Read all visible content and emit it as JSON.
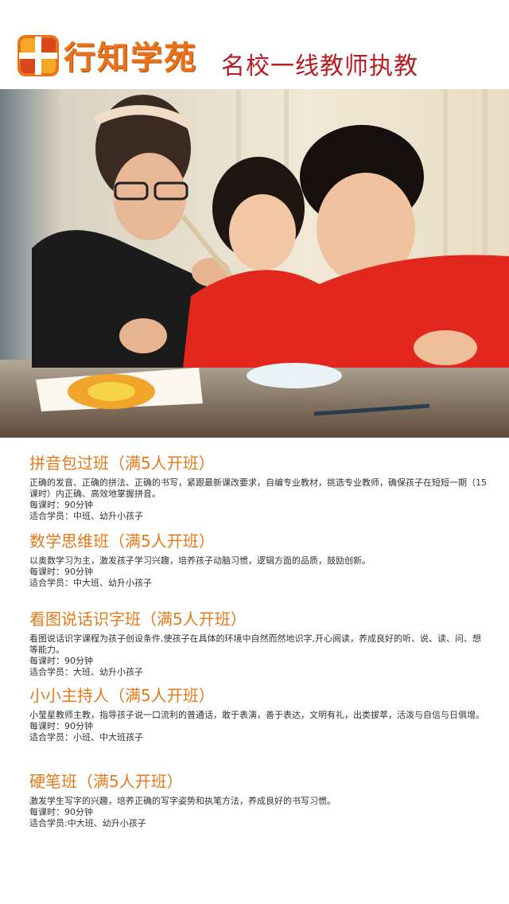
{
  "header": {
    "brand": "行知学苑",
    "slogan": "名校一线教师执教"
  },
  "courses": [
    {
      "title": "拼音包过班（满5人开班）",
      "desc": "正确的发音、正确的拼法、正确的书写，紧跟最新课改要求，自编专业教材，挑选专业教师，确保孩子在短短一期（15课时）内正确、高效地掌握拼音。",
      "duration": "每课时：90分钟",
      "students": "适合学员：中班、幼升小孩子"
    },
    {
      "title": "数学思维班（满5人开班）",
      "desc": "以奥数学习为主，激发孩子学习兴趣，培养孩子动脑习惯，逻辑方面的品质，鼓励创新。",
      "duration": "每课时：90分钟",
      "students": "适合学员：中大班、幼升小孩子"
    },
    {
      "title": "看图说话识字班（满5人开班）",
      "desc": "看图说话识字课程为孩子创设条件,使孩子在具体的环境中自然而然地识字,开心阅读，养成良好的听、说、读、问、想等能力。",
      "duration": "每课时：90分钟",
      "students": "适合学员：大班、幼升小孩子"
    },
    {
      "title": "小小主持人（满5人开班）",
      "desc": "小莹星教师主教，指导孩子说一口流利的普通话，敢于表演，善于表达，文明有礼，出类拔萃，活泼与自信与日俱增。",
      "duration": "每课时：90分钟",
      "students": "适合学员：小班、中大班孩子"
    },
    {
      "title": "硬笔班（满5人开班）",
      "desc": "激发学生写字的兴趣，培养正确的写字姿势和执笔方法，养成良好的书写习惯。",
      "duration": "每课时：90分钟",
      "students": "适合学员:中大班、幼升小孩子"
    }
  ],
  "colors": {
    "brand_orange": "#e8731a",
    "slogan_red": "#b41e24",
    "title_orange": "#e47a1b",
    "photo_red": "#e2271f"
  }
}
